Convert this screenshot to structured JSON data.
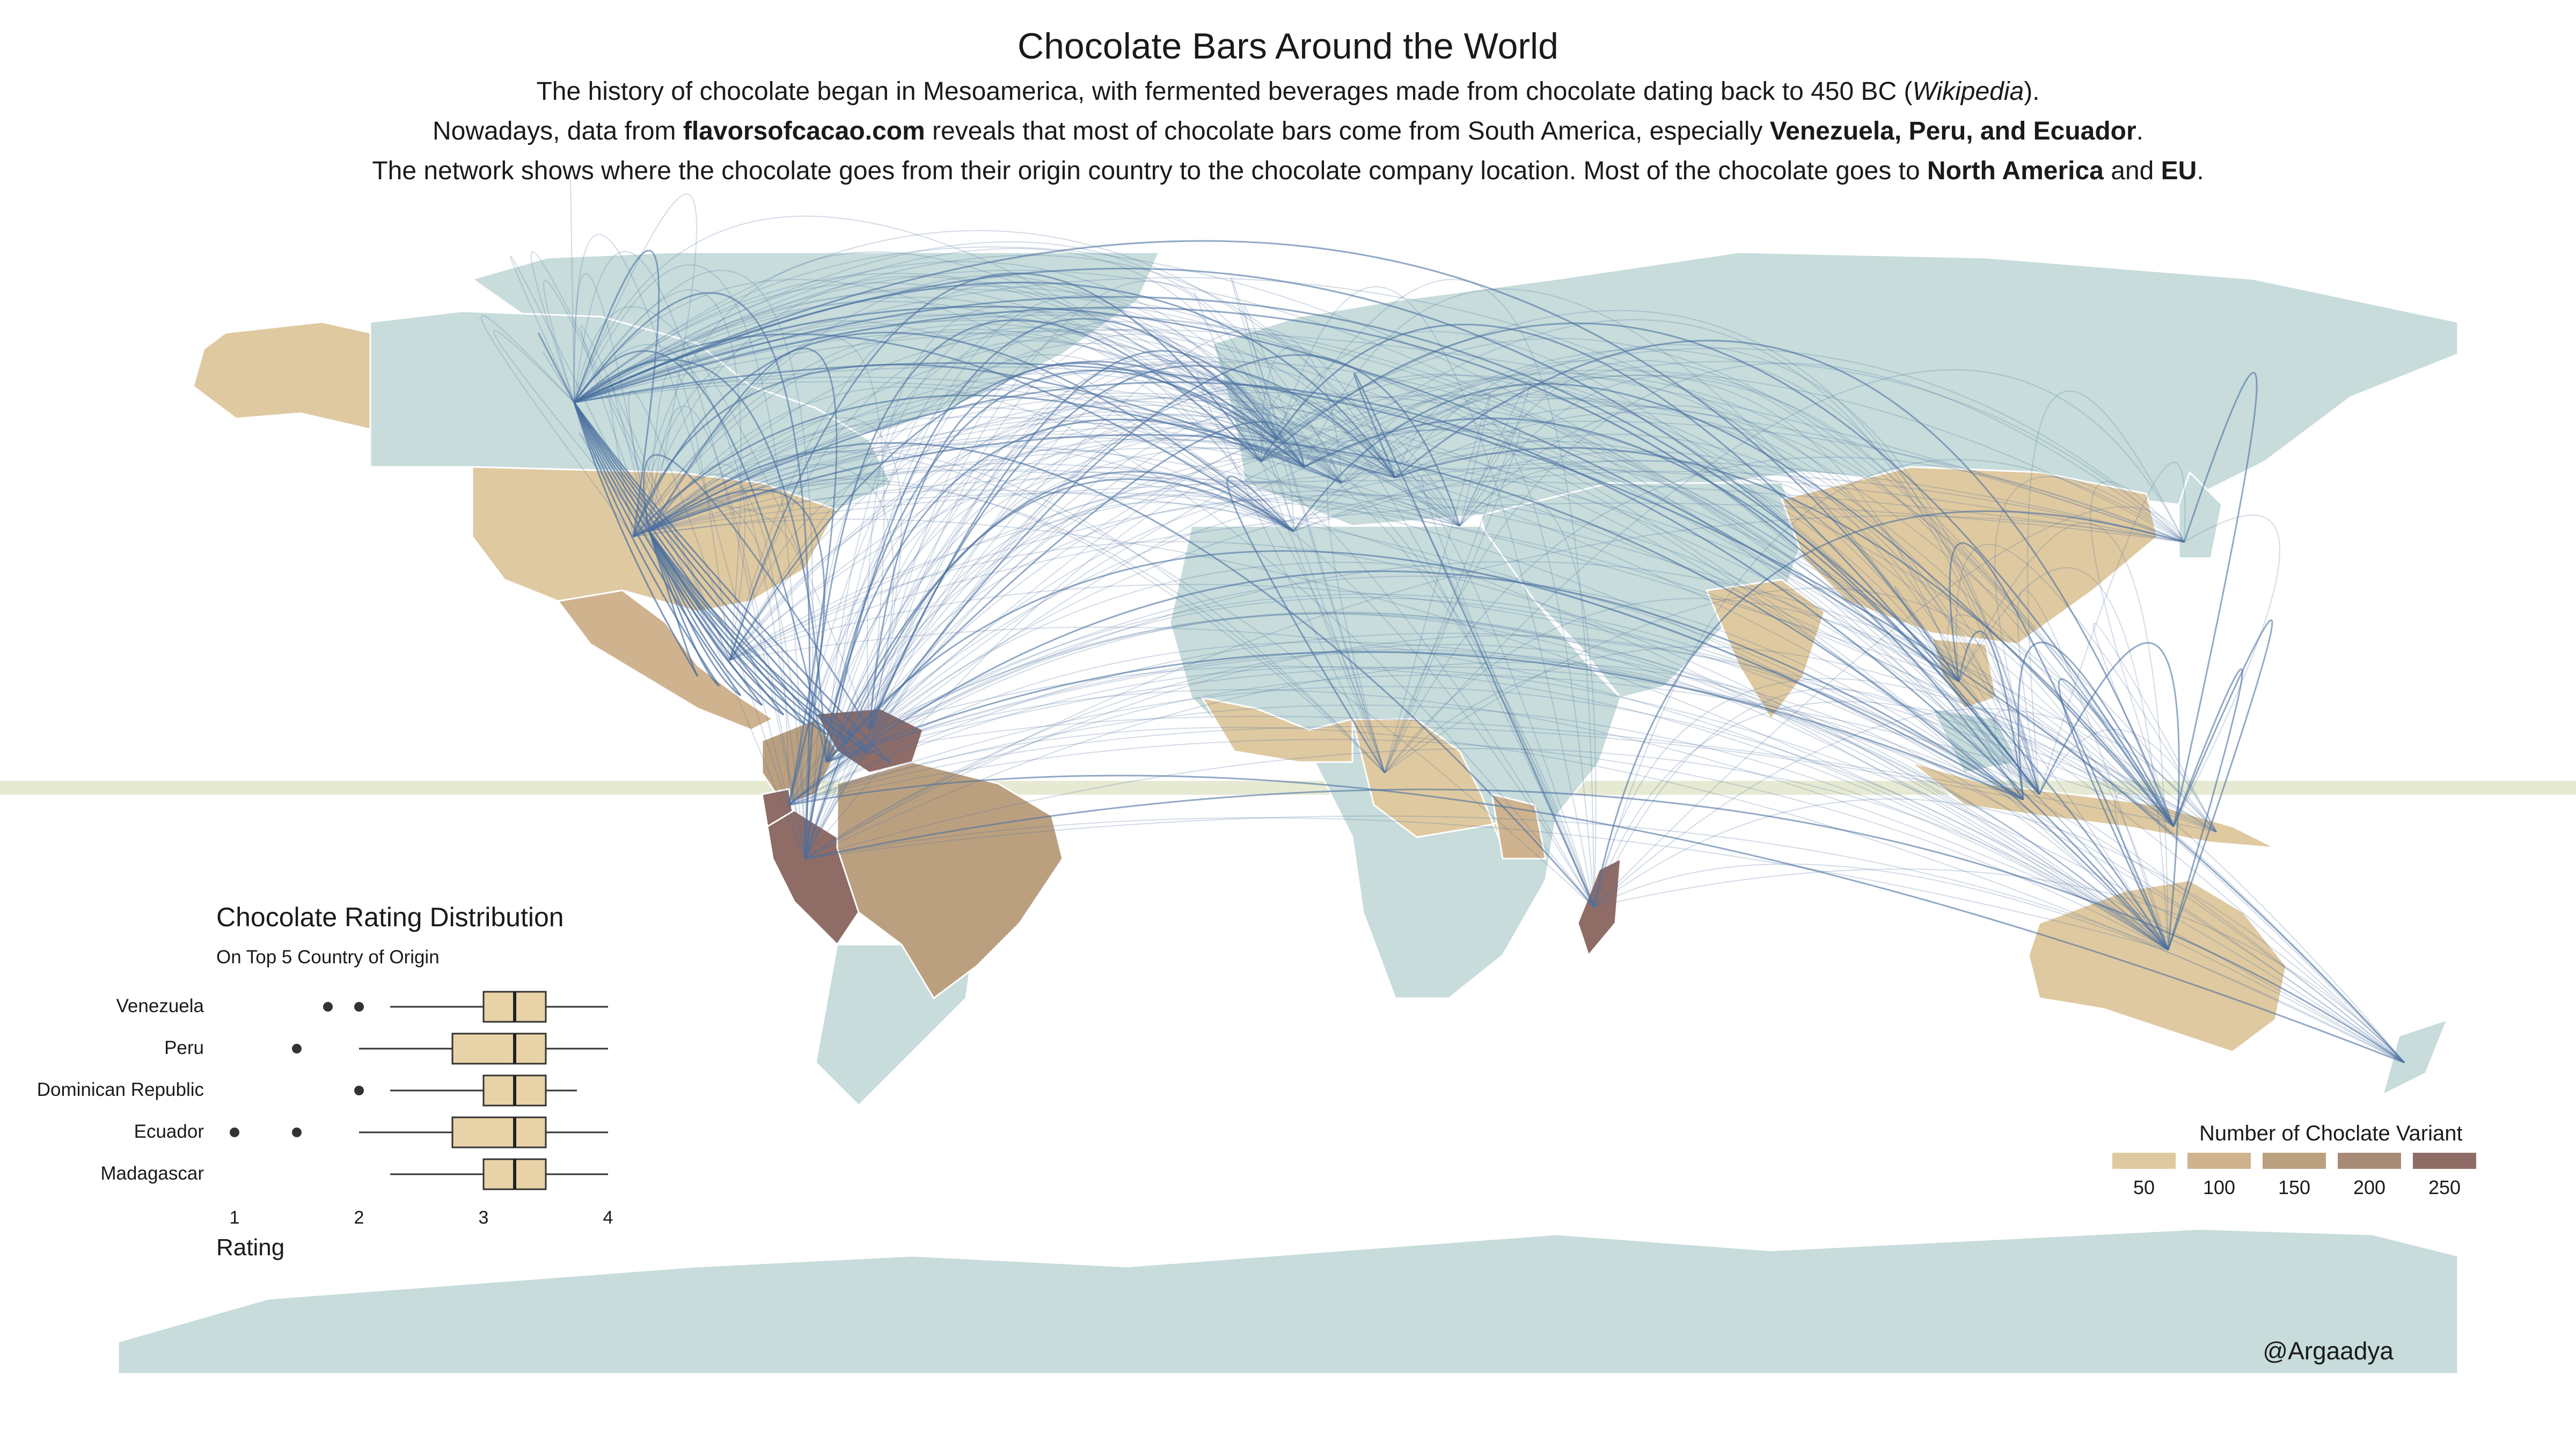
{
  "header": {
    "title": "Chocolate Bars Around the World",
    "line1_pre": "The history of chocolate began in Mesoamerica, with fermented beverages made from chocolate dating back to 450 BC (",
    "line1_em": "Wikipedia",
    "line1_post": ").",
    "line2_pre": "Nowadays, data from ",
    "line2_source": "flavorsofcacao.com",
    "line2_mid": " reveals that most of chocolate bars come from South America, especially ",
    "line2_countries": "Venezuela, Peru, and Ecuador",
    "line2_post": ".",
    "line3_pre": "The network shows where the chocolate goes from their origin country to the chocolate company location. Most of the chocolate goes to ",
    "line3_na": "North America",
    "line3_and": " and ",
    "line3_eu": "EU",
    "line3_post": "."
  },
  "credit": "@Argaadya",
  "colors": {
    "ocean": "#ffffff",
    "land": "#c7dcdb",
    "choropleth": [
      "#dfc9a0",
      "#cfb38e",
      "#bba080",
      "#a88b77",
      "#8f6c66"
    ],
    "flow": "#4a6fa0",
    "equator": "#e6ead3"
  },
  "choropleth_legend": {
    "title": "Number of Choclate Variant",
    "labels": [
      "50",
      "100",
      "150",
      "200",
      "250"
    ]
  },
  "boxplot": {
    "title": "Chocolate Rating Distribution",
    "subtitle": "On Top 5 Country of Origin",
    "xlabel": "Rating",
    "ticks": [
      "1",
      "2",
      "3",
      "4"
    ],
    "countries": [
      {
        "name": "Venezuela",
        "whisker_low": 2.25,
        "q1": 3.0,
        "median": 3.25,
        "q3": 3.5,
        "whisker_high": 4.0,
        "outliers": [
          1.75,
          2.0
        ]
      },
      {
        "name": "Peru",
        "whisker_low": 2.0,
        "q1": 2.75,
        "median": 3.25,
        "q3": 3.5,
        "whisker_high": 4.0,
        "outliers": [
          1.5
        ]
      },
      {
        "name": "Dominican Republic",
        "whisker_low": 2.25,
        "q1": 3.0,
        "median": 3.25,
        "q3": 3.5,
        "whisker_high": 3.75,
        "outliers": [
          2.0
        ]
      },
      {
        "name": "Ecuador",
        "whisker_low": 2.0,
        "q1": 2.75,
        "median": 3.25,
        "q3": 3.5,
        "whisker_high": 4.0,
        "outliers": [
          1.0,
          1.5
        ]
      },
      {
        "name": "Madagascar",
        "whisker_low": 2.25,
        "q1": 3.0,
        "median": 3.25,
        "q3": 3.5,
        "whisker_high": 4.0,
        "outliers": []
      }
    ]
  }
}
